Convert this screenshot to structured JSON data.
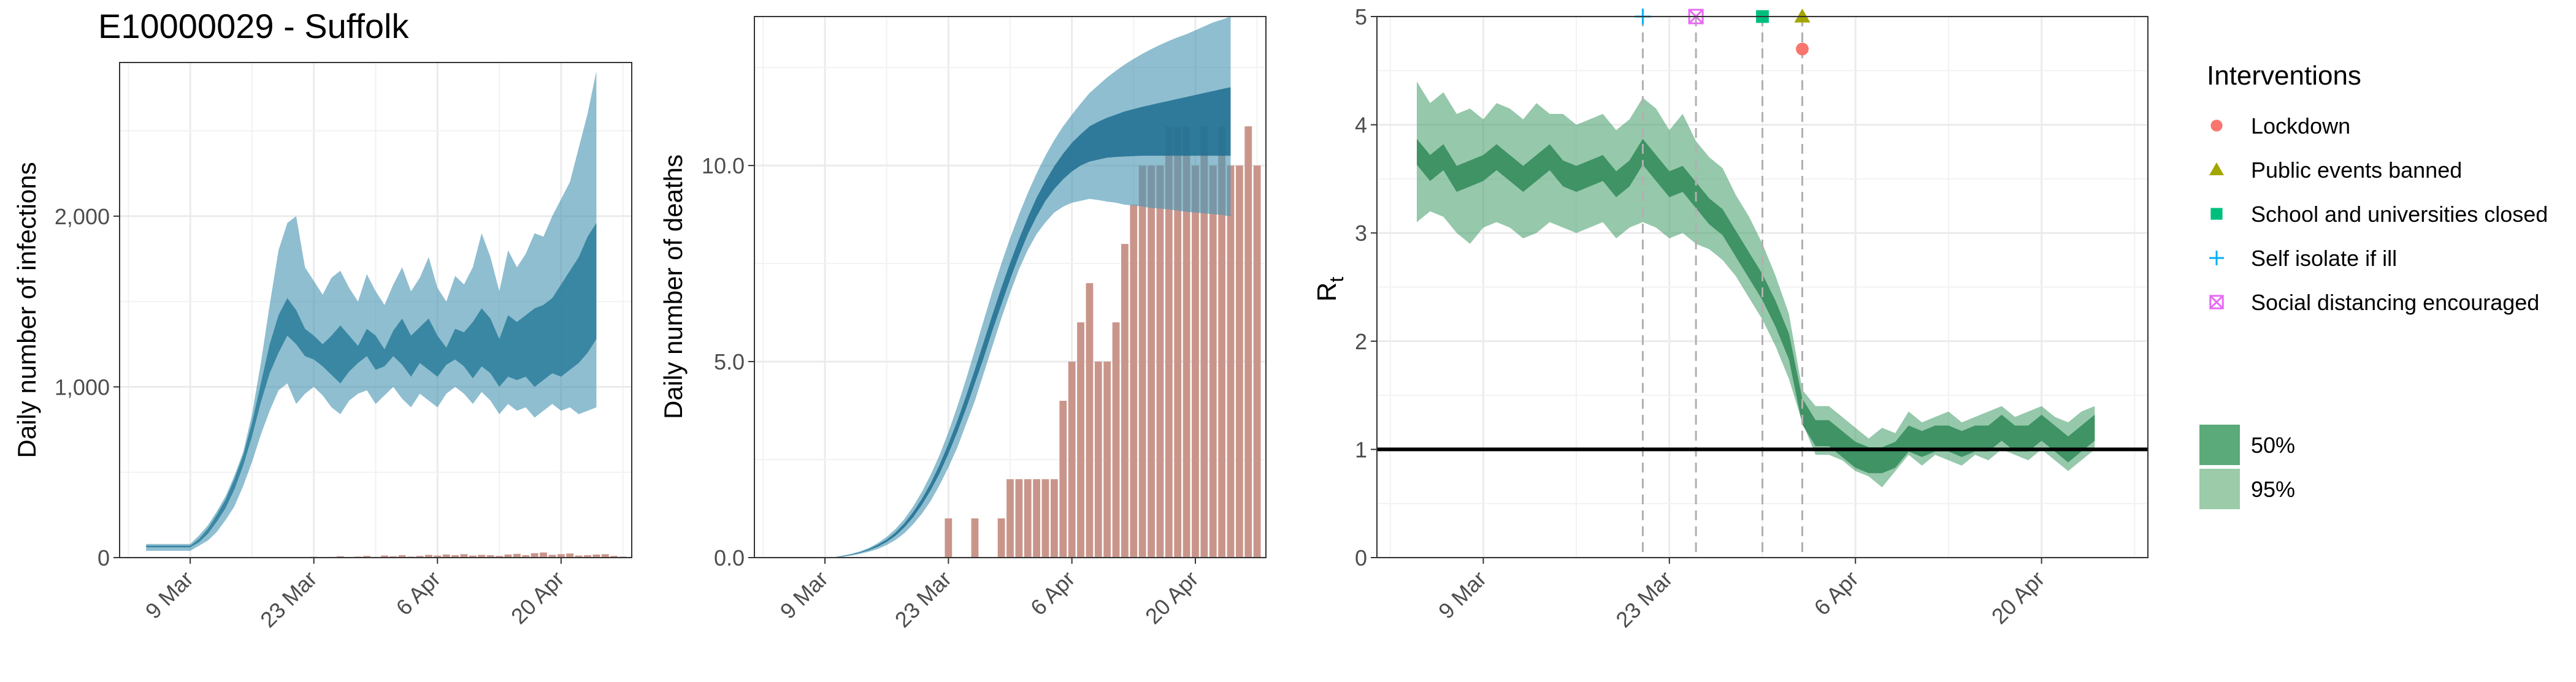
{
  "title": "E10000029 - Suffolk",
  "colors": {
    "infections_band": "#4a96b3",
    "deaths_band": "#4a96b3",
    "observed_bar": "#c9958b",
    "rt_band": "#3f9b66",
    "grid": "#ebebeb",
    "panel_border": "#333333",
    "lockdown": "#f8766d",
    "public_events_banned": "#a3a500",
    "school_closed": "#00bf7d",
    "self_isolate": "#00b0f6",
    "social_distancing": "#e76bf3"
  },
  "x_ticks": [
    "9 Mar",
    "23 Mar",
    "6 Apr",
    "20 Apr"
  ],
  "chart_data": [
    {
      "type": "area",
      "ylabel": "Daily number of infections",
      "ylim": [
        0,
        2900
      ],
      "y_ticks": [
        0,
        1000,
        2000
      ],
      "y_tick_labels": [
        "0",
        "1,000",
        "2,000"
      ],
      "grid": true,
      "x_day_range": [
        -8,
        50
      ],
      "bands": {
        "x_start": -5,
        "x_end": 46,
        "q95_low": [
          40,
          40,
          40,
          40,
          40,
          40,
          70,
          100,
          150,
          220,
          300,
          420,
          560,
          720,
          860,
          980,
          1020,
          900,
          960,
          1000,
          950,
          880,
          840,
          920,
          960,
          980,
          900,
          950,
          1000,
          930,
          880,
          960,
          920,
          880,
          960,
          1000,
          960,
          900,
          970,
          920,
          840,
          900,
          860,
          880,
          820,
          860,
          900,
          860,
          880,
          840,
          860,
          880
        ],
        "q95_high": [
          80,
          80,
          80,
          80,
          80,
          80,
          130,
          190,
          270,
          360,
          480,
          620,
          840,
          1140,
          1480,
          1800,
          1960,
          2000,
          1700,
          1620,
          1540,
          1640,
          1680,
          1580,
          1500,
          1660,
          1560,
          1480,
          1600,
          1700,
          1560,
          1640,
          1760,
          1580,
          1500,
          1650,
          1600,
          1700,
          1900,
          1760,
          1560,
          1800,
          1700,
          1780,
          1900,
          1880,
          2000,
          2100,
          2200,
          2400,
          2600,
          2850
        ],
        "q50_low": [
          60,
          60,
          60,
          60,
          60,
          60,
          90,
          140,
          210,
          290,
          400,
          540,
          710,
          910,
          1080,
          1200,
          1300,
          1250,
          1180,
          1160,
          1120,
          1070,
          1020,
          1090,
          1140,
          1180,
          1100,
          1120,
          1180,
          1130,
          1060,
          1140,
          1100,
          1060,
          1130,
          1160,
          1120,
          1050,
          1120,
          1080,
          1000,
          1060,
          1040,
          1060,
          1000,
          1040,
          1080,
          1060,
          1100,
          1140,
          1200,
          1280
        ],
        "q50_high": [
          70,
          70,
          70,
          70,
          70,
          70,
          110,
          170,
          250,
          340,
          460,
          600,
          790,
          1020,
          1250,
          1420,
          1520,
          1450,
          1340,
          1300,
          1250,
          1300,
          1360,
          1300,
          1240,
          1340,
          1300,
          1220,
          1330,
          1400,
          1300,
          1350,
          1400,
          1300,
          1230,
          1340,
          1320,
          1380,
          1460,
          1400,
          1280,
          1420,
          1380,
          1420,
          1460,
          1480,
          1520,
          1600,
          1680,
          1760,
          1880,
          1960
        ]
      },
      "observed": {
        "x_start": 14,
        "values": [
          5,
          0,
          4,
          8,
          2,
          6,
          10,
          4,
          12,
          8,
          14,
          6,
          10,
          16,
          12,
          18,
          14,
          20,
          12,
          16,
          14,
          10,
          18,
          22,
          14,
          26,
          30,
          16,
          20,
          24,
          12,
          14,
          18,
          20,
          10,
          6
        ]
      }
    },
    {
      "type": "area",
      "ylabel": "Daily number of deaths",
      "ylim": [
        0,
        13.8
      ],
      "y_ticks": [
        0,
        5,
        10
      ],
      "y_tick_labels": [
        "0.0",
        "5.0",
        "10.0"
      ],
      "grid": true,
      "x_day_range": [
        -8,
        50
      ],
      "bands": {
        "x_start": -5,
        "x_end": 46,
        "q95_low": [
          0,
          0,
          0,
          0,
          0,
          0,
          0,
          0.02,
          0.05,
          0.1,
          0.15,
          0.22,
          0.32,
          0.45,
          0.62,
          0.85,
          1.12,
          1.45,
          1.85,
          2.3,
          2.8,
          3.4,
          4,
          4.7,
          5.4,
          6.1,
          6.75,
          7.35,
          7.85,
          8.25,
          8.55,
          8.8,
          8.95,
          9.05,
          9.1,
          9.15,
          9.12,
          9.08,
          9.05,
          9,
          8.98,
          8.95,
          8.92,
          8.9,
          8.88,
          8.85,
          8.82,
          8.8,
          8.78,
          8.76,
          8.74,
          8.7
        ],
        "q95_high": [
          0,
          0,
          0,
          0,
          0,
          0,
          0.01,
          0.05,
          0.1,
          0.16,
          0.25,
          0.37,
          0.53,
          0.73,
          0.98,
          1.3,
          1.68,
          2.12,
          2.62,
          3.2,
          3.85,
          4.55,
          5.3,
          6.05,
          6.8,
          7.5,
          8.15,
          8.75,
          9.3,
          9.8,
          10.25,
          10.65,
          11,
          11.3,
          11.58,
          11.85,
          12.05,
          12.25,
          12.42,
          12.58,
          12.72,
          12.85,
          12.97,
          13.08,
          13.18,
          13.27,
          13.35,
          13.45,
          13.55,
          13.65,
          13.72,
          13.8
        ],
        "q50_low": [
          0,
          0,
          0,
          0,
          0,
          0,
          0,
          0.03,
          0.07,
          0.12,
          0.19,
          0.28,
          0.4,
          0.56,
          0.77,
          1.03,
          1.35,
          1.72,
          2.15,
          2.65,
          3.2,
          3.8,
          4.45,
          5.1,
          5.8,
          6.45,
          7.1,
          7.7,
          8.25,
          8.7,
          9.1,
          9.4,
          9.65,
          9.85,
          10,
          10.1,
          10.15,
          10.2,
          10.22,
          10.23,
          10.24,
          10.25,
          10.25,
          10.25,
          10.25,
          10.25,
          10.25,
          10.25,
          10.25,
          10.25,
          10.25,
          10.25
        ],
        "q50_high": [
          0,
          0,
          0,
          0,
          0,
          0,
          0,
          0.04,
          0.08,
          0.14,
          0.22,
          0.33,
          0.46,
          0.64,
          0.87,
          1.16,
          1.5,
          1.9,
          2.37,
          2.9,
          3.48,
          4.12,
          4.8,
          5.5,
          6.2,
          6.88,
          7.52,
          8.12,
          8.68,
          9.18,
          9.6,
          9.98,
          10.3,
          10.58,
          10.8,
          11,
          11.12,
          11.22,
          11.3,
          11.38,
          11.44,
          11.5,
          11.55,
          11.6,
          11.65,
          11.7,
          11.75,
          11.8,
          11.85,
          11.9,
          11.95,
          12
        ]
      },
      "observed": {
        "x_start": 14,
        "values": [
          1,
          0,
          0,
          1,
          0,
          0,
          1,
          2,
          2,
          2,
          2,
          2,
          2,
          4,
          5,
          6,
          7,
          5,
          5,
          6,
          8,
          9,
          10,
          10,
          10,
          11,
          11,
          11,
          10,
          11,
          10,
          11,
          10,
          10,
          11,
          10
        ]
      }
    },
    {
      "type": "area",
      "ylabel": "Rt",
      "ylim": [
        0,
        5
      ],
      "y_ticks": [
        0,
        1,
        2,
        3,
        4,
        5
      ],
      "y_tick_labels": [
        "0",
        "1",
        "2",
        "3",
        "4",
        "5"
      ],
      "grid": true,
      "x_day_range": [
        -8,
        50
      ],
      "reference_line": 1,
      "bands": {
        "x_start": -5,
        "x_end": 46,
        "q95_low": [
          3.1,
          3.2,
          3.15,
          3,
          2.9,
          3.05,
          3.1,
          3.05,
          2.95,
          3,
          3.1,
          3.05,
          3,
          3.05,
          3.1,
          2.95,
          3.05,
          3.1,
          3.05,
          2.95,
          3,
          2.9,
          2.85,
          2.75,
          2.6,
          2.4,
          2.2,
          1.95,
          1.65,
          1.25,
          0.95,
          0.95,
          0.9,
          0.8,
          0.75,
          0.65,
          0.8,
          0.95,
          0.85,
          0.95,
          0.9,
          0.85,
          0.95,
          0.9,
          1,
          0.95,
          0.9,
          1,
          0.9,
          0.8,
          0.9,
          1
        ],
        "q95_high": [
          4.4,
          4.2,
          4.3,
          4.1,
          4.15,
          4.05,
          4.2,
          4.15,
          4.05,
          4.2,
          4.1,
          4.1,
          4,
          4.05,
          4.1,
          3.95,
          4.05,
          4.25,
          4.15,
          3.95,
          4.1,
          3.85,
          3.7,
          3.6,
          3.35,
          3.15,
          2.9,
          2.6,
          2.25,
          1.55,
          1.4,
          1.4,
          1.3,
          1.2,
          1.1,
          1.2,
          1.15,
          1.35,
          1.25,
          1.3,
          1.35,
          1.25,
          1.3,
          1.35,
          1.4,
          1.3,
          1.35,
          1.4,
          1.3,
          1.25,
          1.35,
          1.4
        ]
      },
      "q50_line": [
        3.75,
        3.6,
        3.7,
        3.5,
        3.55,
        3.6,
        3.7,
        3.6,
        3.5,
        3.6,
        3.7,
        3.55,
        3.5,
        3.55,
        3.6,
        3.45,
        3.55,
        3.75,
        3.6,
        3.45,
        3.5,
        3.35,
        3.2,
        3.1,
        2.9,
        2.7,
        2.5,
        2.25,
        1.95,
        1.35,
        1.15,
        1.15,
        1.05,
        0.95,
        0.9,
        0.9,
        0.95,
        1.1,
        1.05,
        1.1,
        1.1,
        1.05,
        1.1,
        1.1,
        1.2,
        1.1,
        1.1,
        1.2,
        1.1,
        1,
        1.1,
        1.2
      ],
      "interventions": [
        {
          "name": "Self isolate if ill",
          "day": 12,
          "rt": 5,
          "shape": "plus",
          "color": "#00b0f6"
        },
        {
          "name": "Social distancing encouraged",
          "day": 16,
          "rt": 5,
          "shape": "xbox",
          "color": "#e76bf3"
        },
        {
          "name": "School and universities closed",
          "day": 21,
          "rt": 5,
          "shape": "square",
          "color": "#00bf7d"
        },
        {
          "name": "Public events banned",
          "day": 24,
          "rt": 5,
          "shape": "triangle",
          "color": "#a3a500"
        },
        {
          "name": "Lockdown",
          "day": 24,
          "rt": 4.7,
          "shape": "circle",
          "color": "#f8766d"
        }
      ]
    }
  ],
  "legend": {
    "interventions_title": "Interventions",
    "interventions": [
      "Lockdown",
      "Public events banned",
      "School and universities closed",
      "Self isolate if ill",
      "Social distancing encouraged"
    ],
    "interval_labels": [
      "50%",
      "95%"
    ]
  }
}
